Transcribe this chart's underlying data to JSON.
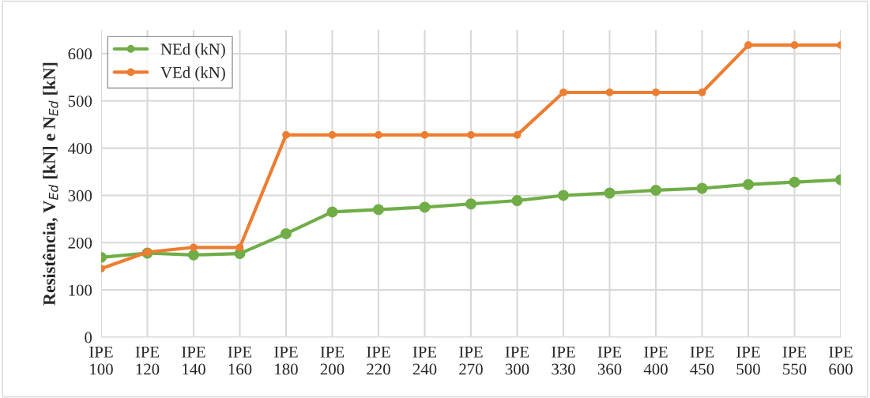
{
  "chart_data": {
    "type": "line",
    "ylabel": "Resistência, V$_{Ed}$ [kN] e N$_{Ed}$ [kN]",
    "categories": [
      "IPE\n100",
      "IPE\n120",
      "IPE\n140",
      "IPE\n160",
      "IPE\n180",
      "IPE\n200",
      "IPE\n220",
      "IPE\n240",
      "IPE\n270",
      "IPE\n300",
      "IPE\n330",
      "IPE\n360",
      "IPE\n400",
      "IPE\n450",
      "IPE\n500",
      "IPE\n550",
      "IPE\n600"
    ],
    "series": [
      {
        "name": "NEd (kN)",
        "color": "#70ad47",
        "values": [
          169,
          178,
          174,
          177,
          219,
          265,
          270,
          275,
          282,
          289,
          300,
          305,
          311,
          315,
          323,
          328,
          333
        ]
      },
      {
        "name": "VEd (kN)",
        "color": "#ed7d31",
        "values": [
          145,
          180,
          190,
          190,
          428,
          428,
          428,
          428,
          428,
          428,
          518,
          518,
          518,
          518,
          618,
          618,
          618
        ]
      }
    ],
    "ylim": [
      0,
      650
    ],
    "yticks": [
      0,
      100,
      200,
      300,
      400,
      500,
      600
    ],
    "grid": true,
    "legend": "top left",
    "marker": "circle",
    "line_style": "solid"
  }
}
